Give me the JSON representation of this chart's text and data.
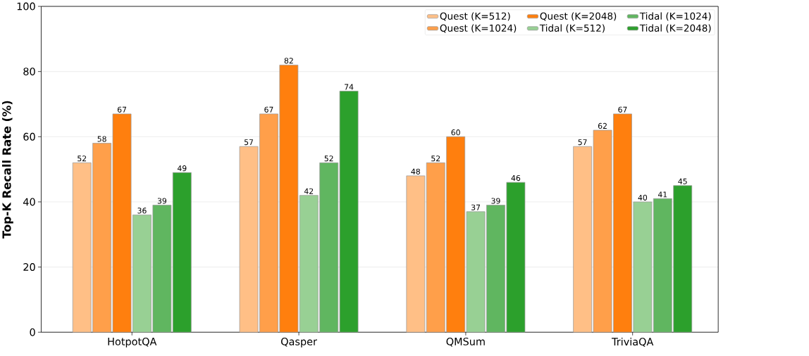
{
  "chart_data": {
    "type": "bar",
    "ylabel": "Top-K Recall Rate (%)",
    "categories": [
      "HotpotQA",
      "Qasper",
      "QMSum",
      "TriviaQA"
    ],
    "series": [
      {
        "name": "Quest (K=512)",
        "color": "#ffbf86",
        "values": [
          52,
          57,
          48,
          57
        ]
      },
      {
        "name": "Quest (K=1024)",
        "color": "#ff9f4a",
        "values": [
          58,
          67,
          52,
          62
        ]
      },
      {
        "name": "Quest (K=2048)",
        "color": "#ff7f0e",
        "values": [
          67,
          82,
          60,
          67
        ]
      },
      {
        "name": "Tidal (K=512)",
        "color": "#98d094",
        "values": [
          36,
          42,
          37,
          40
        ]
      },
      {
        "name": "Tidal (K=1024)",
        "color": "#60b660",
        "values": [
          39,
          52,
          39,
          41
        ]
      },
      {
        "name": "Tidal (K=2048)",
        "color": "#2ca02c",
        "values": [
          49,
          74,
          46,
          45
        ]
      }
    ],
    "ylim": [
      0,
      100
    ],
    "yticks": [
      0,
      20,
      40,
      60,
      80,
      100
    ],
    "grid": "y",
    "legend": "top right",
    "data_labels": true
  }
}
